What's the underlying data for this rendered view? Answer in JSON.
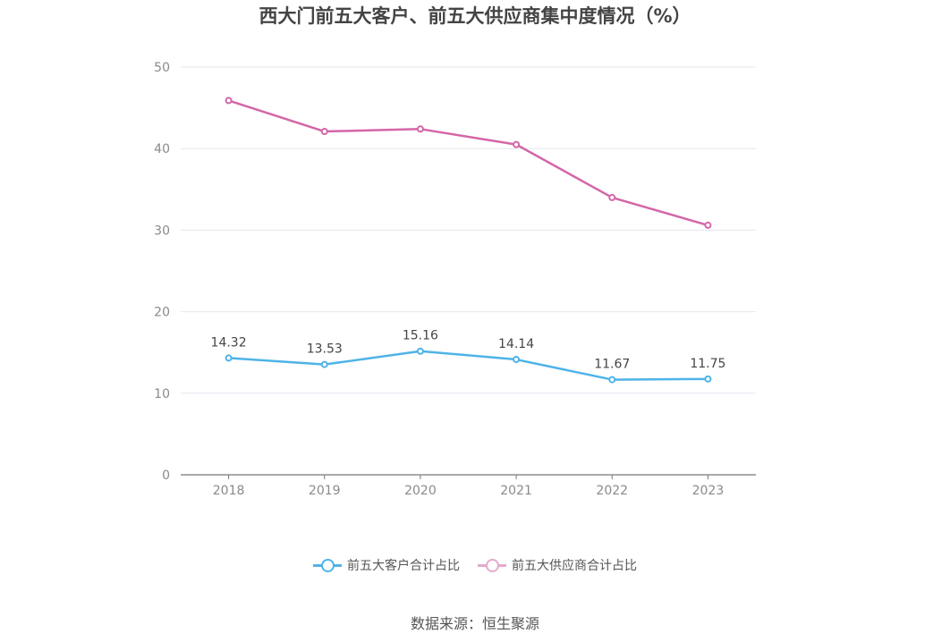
{
  "chart_data": {
    "type": "line",
    "title": "西大门前五大客户、前五大供应商集中度情况（%）",
    "categories": [
      "2018",
      "2019",
      "2020",
      "2021",
      "2022",
      "2023"
    ],
    "ylim": [
      0,
      50
    ],
    "yticks": [
      0,
      10,
      20,
      30,
      40,
      50
    ],
    "grid": true,
    "legend_position": "bottom",
    "series": [
      {
        "name": "前五大客户合计占比",
        "color": "#4fb3e8",
        "values": [
          14.32,
          13.53,
          15.16,
          14.14,
          11.67,
          11.75
        ],
        "labels_shown": true
      },
      {
        "name": "前五大供应商合计占比",
        "color": "#d466a8",
        "values": [
          45.9,
          42.1,
          42.4,
          40.5,
          34.0,
          30.6
        ],
        "labels_shown": false
      }
    ]
  },
  "legend_colors": {
    "customers_dim": "#4fb3e8",
    "suppliers_dim": "#e6a9cf"
  },
  "source": "数据来源：恒生聚源"
}
